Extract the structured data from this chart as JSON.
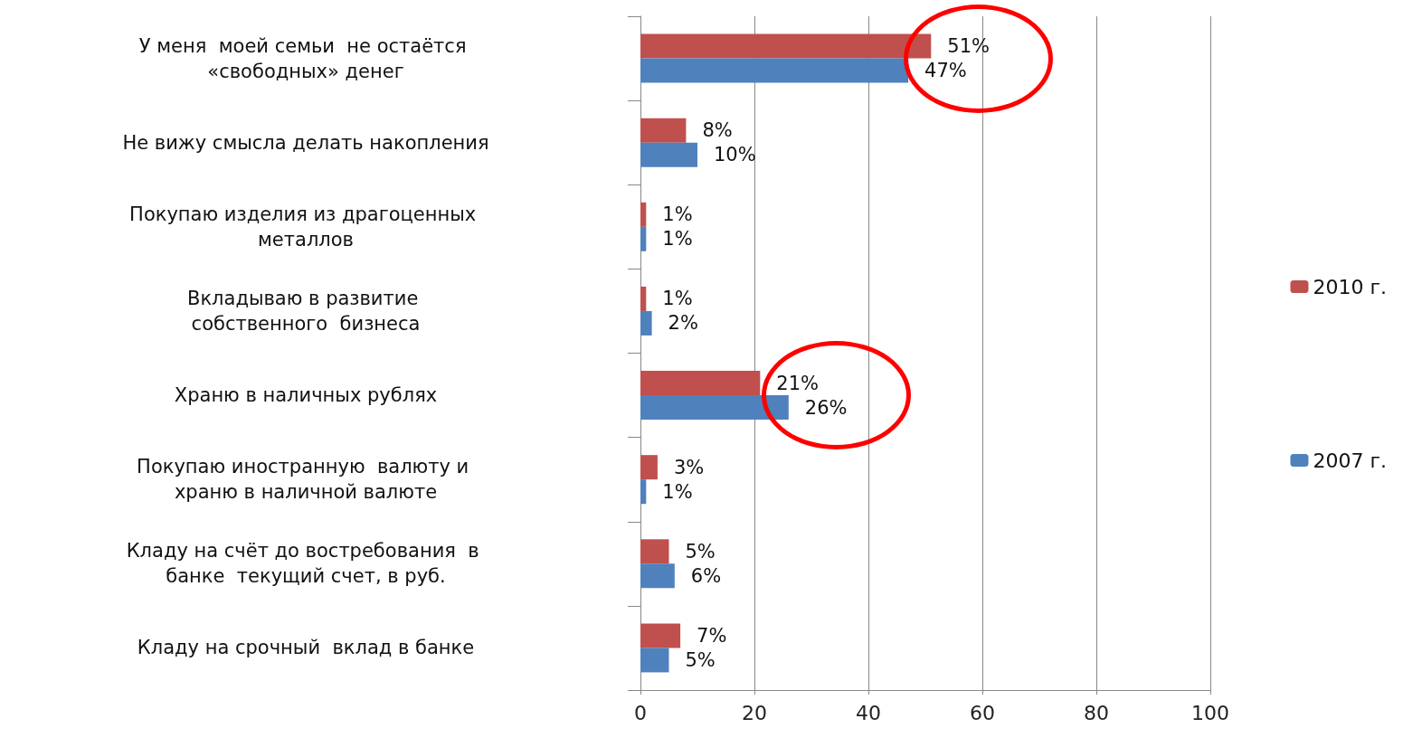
{
  "chart_data": {
    "type": "bar",
    "orientation": "horizontal",
    "categories": [
      "У меня  моей семьи  не остаётся «свободных» денег",
      "Не вижу смысла делать накопления",
      "Покупаю изделия из драгоценных металлов",
      "Вкладываю в развитие собственного  бизнеса",
      "Храню в наличных рублях",
      "Покупаю иностранную  валюту и храню в наличной валюте",
      "Кладу на счёт до востребования  в банке  текущий счет, в руб.",
      "Кладу на срочный  вклад в банке"
    ],
    "series": [
      {
        "name": "2010 г.",
        "color": "#c0504d",
        "values": [
          51,
          8,
          1,
          1,
          21,
          3,
          5,
          7
        ],
        "value_labels": [
          "51%",
          "8%",
          "1%",
          "1%",
          "21%",
          "3%",
          "5%",
          "7%"
        ]
      },
      {
        "name": "2007 г.",
        "color": "#4f81bd",
        "values": [
          47,
          10,
          1,
          2,
          26,
          1,
          6,
          5
        ],
        "value_labels": [
          "47%",
          "10%",
          "1%",
          "2%",
          "26%",
          "1%",
          "6%",
          "5%"
        ]
      }
    ],
    "xlim": [
      0,
      100
    ],
    "xticks": [
      0,
      20,
      40,
      60,
      80,
      100
    ],
    "grid": "x",
    "legend": "right"
  }
}
